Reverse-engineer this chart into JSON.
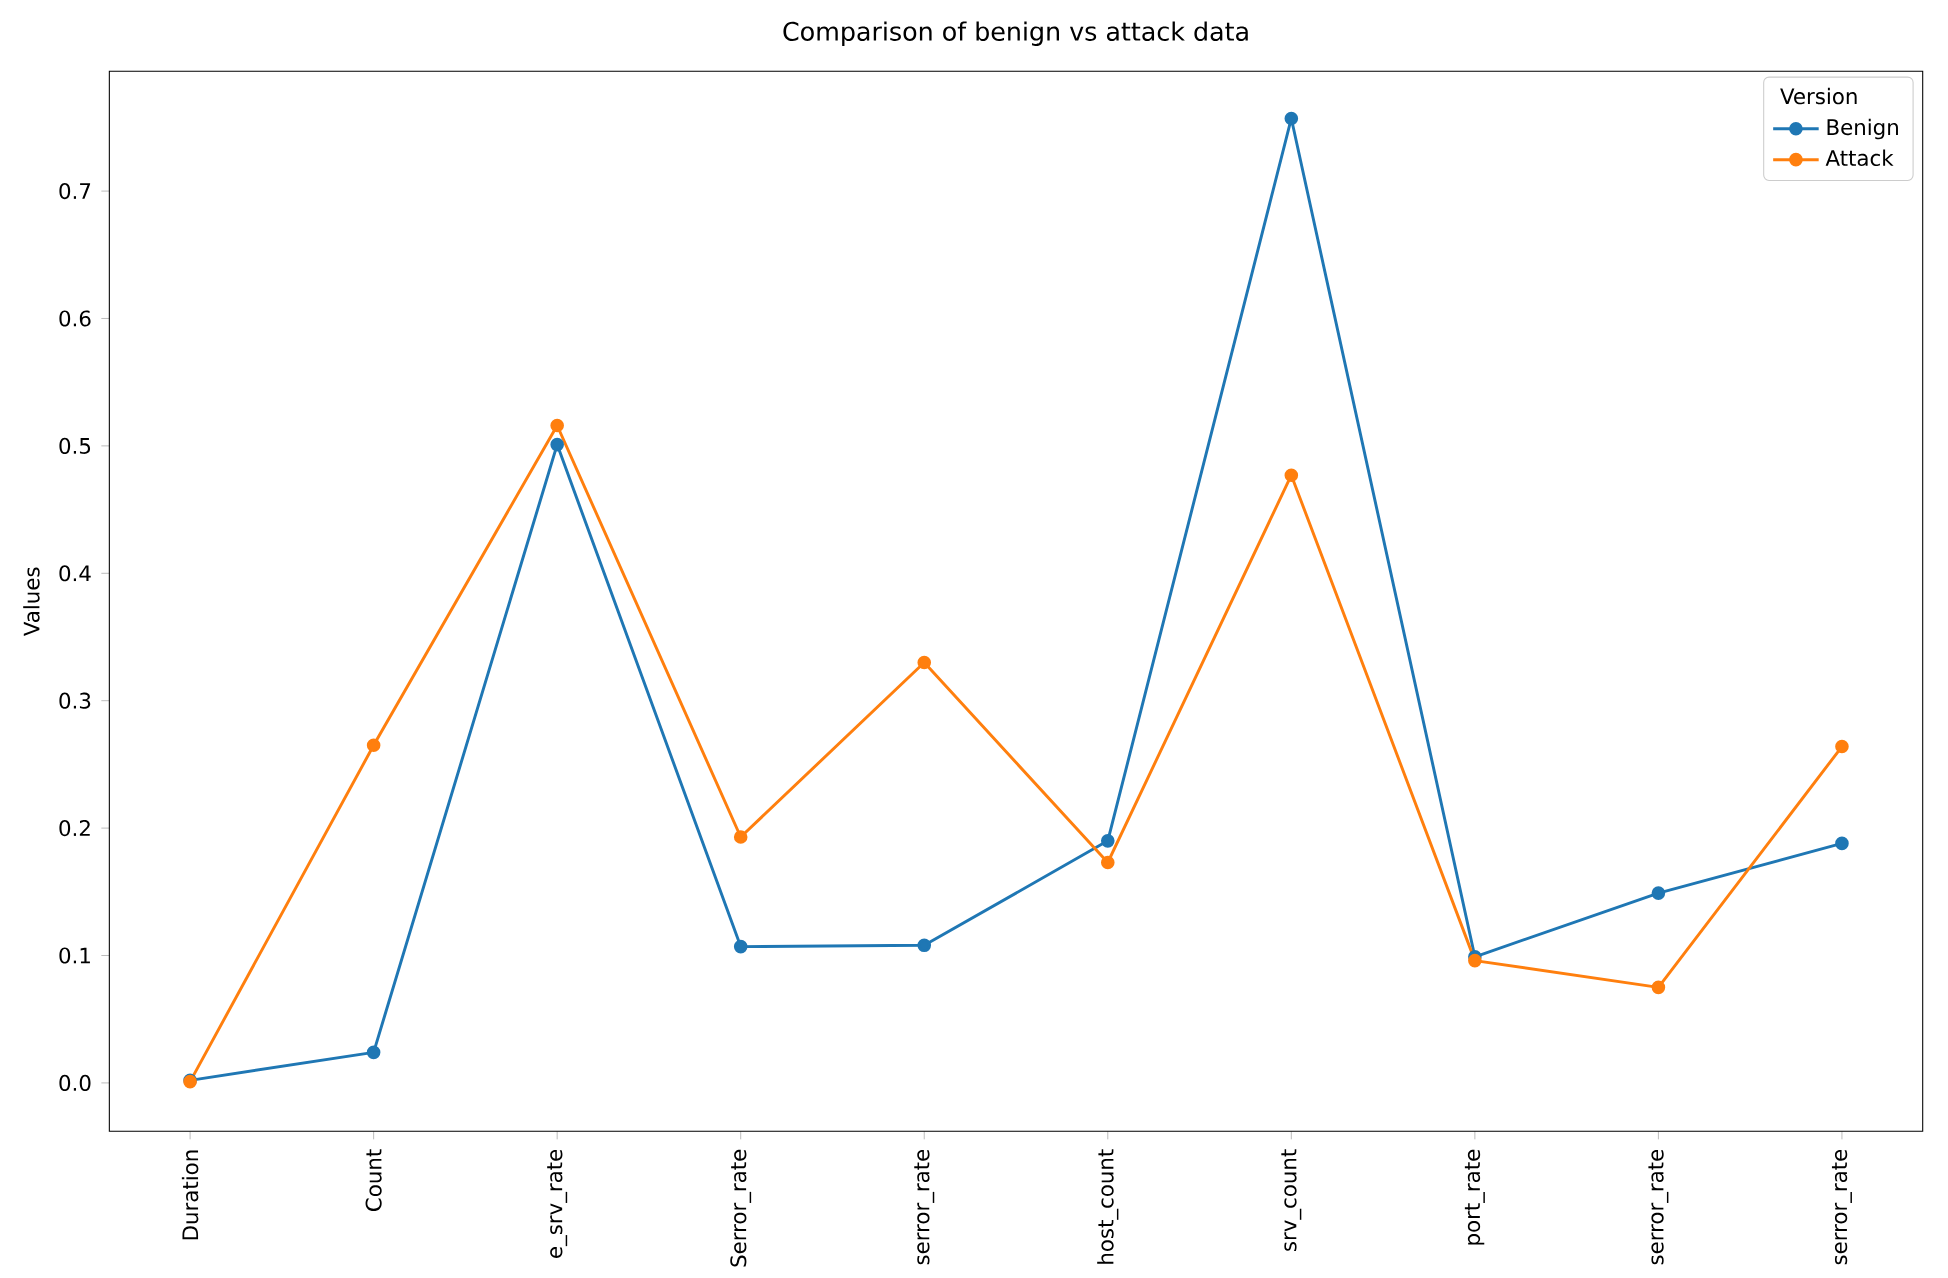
{
  "chart_data": {
    "type": "line",
    "title": "Comparison of benign vs attack data",
    "ylabel": "Values",
    "legend_title": "Version",
    "categories": [
      "Duration",
      "Count",
      "e_srv_rate",
      "Serror_rate",
      "serror_rate",
      "host_count",
      "srv_count",
      "port_rate",
      "serror_rate",
      "serror_rate"
    ],
    "series": [
      {
        "name": "Benign",
        "color": "#1f77b4",
        "values": [
          0.002,
          0.024,
          0.501,
          0.107,
          0.108,
          0.19,
          0.757,
          0.099,
          0.149,
          0.188
        ]
      },
      {
        "name": "Attack",
        "color": "#ff7f0e",
        "values": [
          0.001,
          0.265,
          0.516,
          0.193,
          0.33,
          0.173,
          0.477,
          0.096,
          0.075,
          0.264
        ]
      }
    ],
    "ylim": [
      -0.038,
      0.794
    ],
    "yticks": [
      {
        "value": 0,
        "label": "0.0"
      },
      0.1,
      0.2,
      0.3,
      0.4,
      0.5,
      0.6,
      0.7
    ],
    "marker": "circle",
    "legend": "top right",
    "grid": false
  }
}
